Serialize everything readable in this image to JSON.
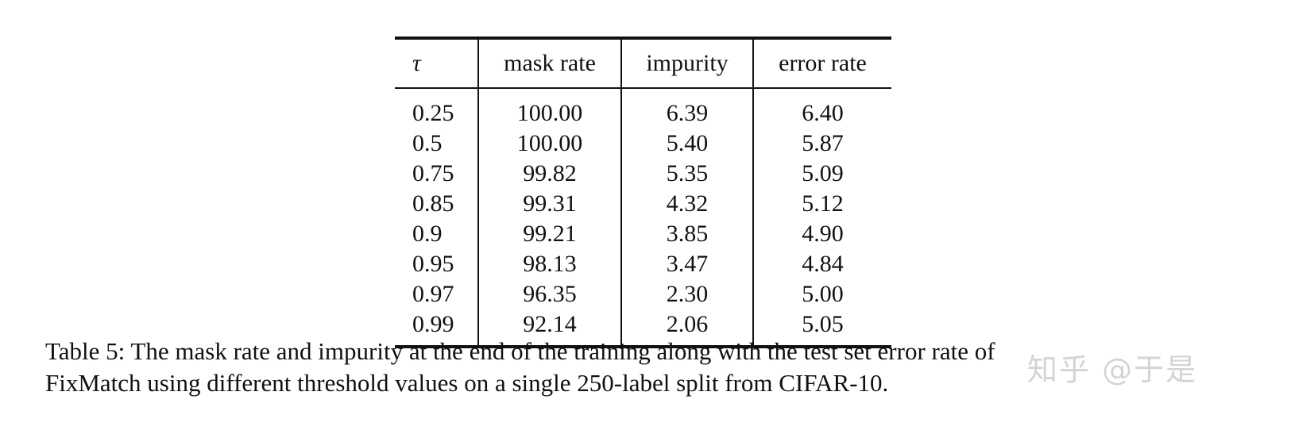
{
  "table": {
    "headers": [
      "τ",
      "mask rate",
      "impurity",
      "error rate"
    ],
    "rows": [
      [
        "0.25",
        "100.00",
        "6.39",
        "6.40"
      ],
      [
        "0.5",
        "100.00",
        "5.40",
        "5.87"
      ],
      [
        "0.75",
        "99.82",
        "5.35",
        "5.09"
      ],
      [
        "0.85",
        "99.31",
        "4.32",
        "5.12"
      ],
      [
        "0.9",
        "99.21",
        "3.85",
        "4.90"
      ],
      [
        "0.95",
        "98.13",
        "3.47",
        "4.84"
      ],
      [
        "0.97",
        "96.35",
        "2.30",
        "5.00"
      ],
      [
        "0.99",
        "92.14",
        "2.06",
        "5.05"
      ]
    ]
  },
  "caption": {
    "line1": "Table 5: The mask rate and impurity at the end of the training along with the test set error rate of",
    "line2": "FixMatch using different threshold values on a single 250-label split from CIFAR-10."
  },
  "watermark": "知乎 @于是"
}
